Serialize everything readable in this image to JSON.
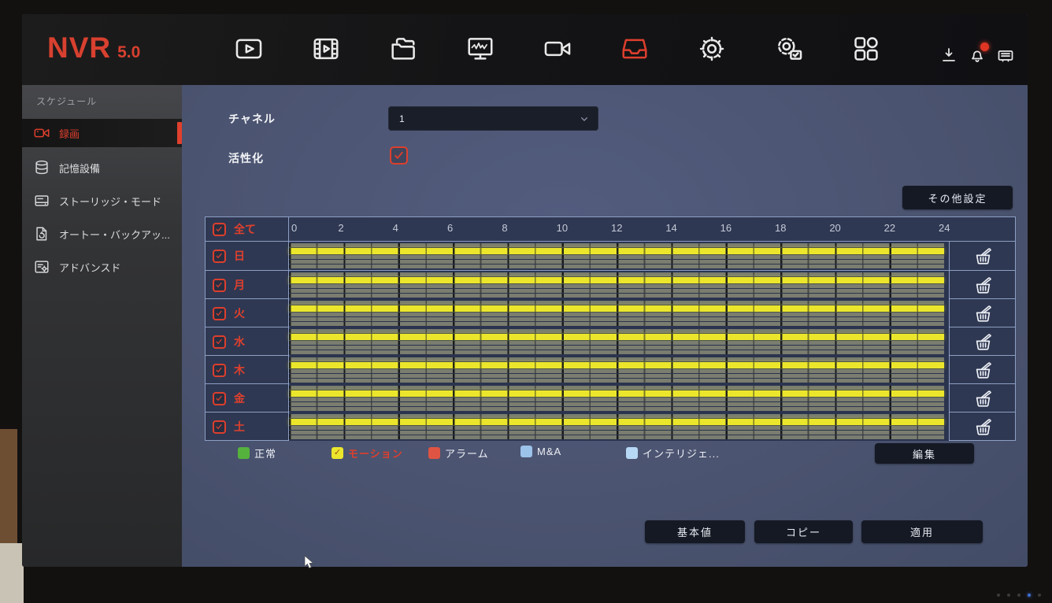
{
  "brand": {
    "name": "NVR",
    "version": "5.0"
  },
  "topbar": {
    "nav": [
      {
        "name": "live-view",
        "active": false
      },
      {
        "name": "playback",
        "active": false
      },
      {
        "name": "file-management",
        "active": false
      },
      {
        "name": "system-status",
        "active": false
      },
      {
        "name": "camera",
        "active": false
      },
      {
        "name": "recording",
        "active": true
      },
      {
        "name": "settings",
        "active": false
      },
      {
        "name": "maintenance",
        "active": false
      },
      {
        "name": "apps",
        "active": false
      }
    ],
    "utility": [
      {
        "name": "download",
        "badge": false
      },
      {
        "name": "alarm-bell",
        "badge": true
      },
      {
        "name": "backup-device",
        "badge": false
      }
    ]
  },
  "sidebar": {
    "section_title": "スケジュール",
    "items": [
      {
        "label": "録画",
        "icon": "record-camera",
        "selected": true
      },
      {
        "label": "記憶設備",
        "icon": "storage-db",
        "selected": false
      },
      {
        "label": "ストーリッジ・モード",
        "icon": "storage-mode",
        "selected": false
      },
      {
        "label": "オートー・バックアッ...",
        "icon": "auto-backup",
        "selected": false
      },
      {
        "label": "アドバンスド",
        "icon": "advanced",
        "selected": false
      }
    ]
  },
  "form": {
    "channel_label": "チャネル",
    "channel_value": "1",
    "enable_label": "活性化",
    "enable_checked": true,
    "more_settings": "その他設定"
  },
  "schedule": {
    "all_label": "全て",
    "all_checked": true,
    "time_labels": [
      "0",
      "2",
      "4",
      "6",
      "8",
      "10",
      "12",
      "14",
      "16",
      "18",
      "20",
      "22",
      "24"
    ],
    "hours": 24,
    "track_types": [
      "正常",
      "モーション",
      "アラーム",
      "M&A",
      "インテリジェント"
    ],
    "days": [
      {
        "label": "日",
        "key": "sun",
        "checked": true,
        "recordings": [
          {
            "type": "モーション",
            "start": 0,
            "end": 24
          }
        ]
      },
      {
        "label": "月",
        "key": "mon",
        "checked": true,
        "recordings": [
          {
            "type": "モーション",
            "start": 0,
            "end": 24
          }
        ]
      },
      {
        "label": "火",
        "key": "tue",
        "checked": true,
        "recordings": [
          {
            "type": "モーション",
            "start": 0,
            "end": 24
          }
        ]
      },
      {
        "label": "水",
        "key": "wed",
        "checked": true,
        "recordings": [
          {
            "type": "モーション",
            "start": 0,
            "end": 24
          }
        ]
      },
      {
        "label": "木",
        "key": "thu",
        "checked": true,
        "recordings": [
          {
            "type": "モーション",
            "start": 0,
            "end": 24
          }
        ]
      },
      {
        "label": "金",
        "key": "fri",
        "checked": true,
        "recordings": [
          {
            "type": "モーション",
            "start": 0,
            "end": 24
          }
        ]
      },
      {
        "label": "土",
        "key": "sat",
        "checked": true,
        "recordings": [
          {
            "type": "モーション",
            "start": 0,
            "end": 24
          }
        ]
      }
    ]
  },
  "legend": {
    "items": [
      {
        "label": "正常",
        "color": "#55b23d",
        "selected": false
      },
      {
        "label": "モーション",
        "color": "#ebe62c",
        "selected": true
      },
      {
        "label": "アラーム",
        "color": "#df5442",
        "selected": false
      },
      {
        "label": "M&A",
        "color": "#9cc3ea",
        "selected": false
      },
      {
        "label": "インテリジェ...",
        "color": "#b6d8f5",
        "selected": false
      }
    ],
    "edit_button": "編集"
  },
  "actions": {
    "default": "基本値",
    "copy": "コピー",
    "apply": "適用"
  },
  "colors": {
    "accent": "#dd3f2d",
    "motion": "#ebe62c",
    "panel": "#4b5474",
    "table_bg": "#2f3852"
  }
}
